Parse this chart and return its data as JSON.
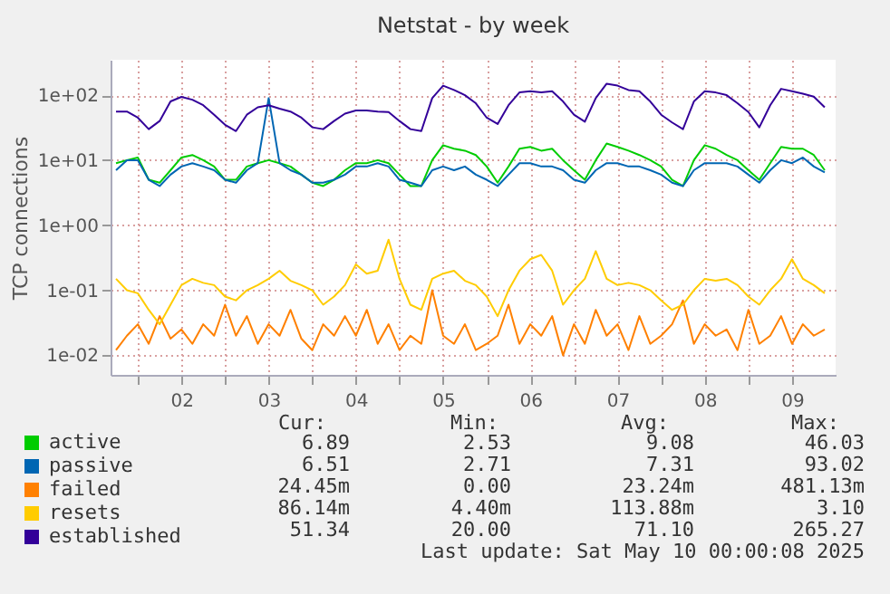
{
  "chart_data": {
    "type": "line",
    "title": "Netstat - by week",
    "ylabel": "TCP connections",
    "log": true,
    "grid": true,
    "legend": "bottom",
    "x": [
      "2025-05-01T18:00",
      "2025-05-01T21:00",
      "2025-05-02T00:00",
      "2025-05-02T03:00",
      "2025-05-02T06:00",
      "2025-05-02T09:00",
      "2025-05-02T12:00",
      "2025-05-02T15:00",
      "2025-05-02T18:00",
      "2025-05-02T21:00",
      "2025-05-03T00:00",
      "2025-05-03T03:00",
      "2025-05-03T06:00",
      "2025-05-03T09:00",
      "2025-05-03T12:00",
      "2025-05-03T15:00",
      "2025-05-03T18:00",
      "2025-05-03T21:00",
      "2025-05-04T00:00",
      "2025-05-04T03:00",
      "2025-05-04T06:00",
      "2025-05-04T09:00",
      "2025-05-04T12:00",
      "2025-05-04T15:00",
      "2025-05-04T18:00",
      "2025-05-04T21:00",
      "2025-05-05T00:00",
      "2025-05-05T03:00",
      "2025-05-05T06:00",
      "2025-05-05T09:00",
      "2025-05-05T12:00",
      "2025-05-05T15:00",
      "2025-05-05T18:00",
      "2025-05-05T21:00",
      "2025-05-06T00:00",
      "2025-05-06T03:00",
      "2025-05-06T06:00",
      "2025-05-06T09:00",
      "2025-05-06T12:00",
      "2025-05-06T15:00",
      "2025-05-06T18:00",
      "2025-05-06T21:00",
      "2025-05-07T00:00",
      "2025-05-07T03:00",
      "2025-05-07T06:00",
      "2025-05-07T09:00",
      "2025-05-07T12:00",
      "2025-05-07T15:00",
      "2025-05-07T18:00",
      "2025-05-07T21:00",
      "2025-05-08T00:00",
      "2025-05-08T03:00",
      "2025-05-08T06:00",
      "2025-05-08T09:00",
      "2025-05-08T12:00",
      "2025-05-08T15:00",
      "2025-05-08T18:00",
      "2025-05-08T21:00",
      "2025-05-09T00:00",
      "2025-05-09T03:00",
      "2025-05-09T06:00",
      "2025-05-09T09:00",
      "2025-05-09T12:00",
      "2025-05-09T15:00",
      "2025-05-09T18:00",
      "2025-05-09T21:00"
    ],
    "series": [
      {
        "name": "active",
        "color": "#00cc00",
        "values": [
          9,
          10,
          11,
          5,
          4.5,
          7,
          11,
          12,
          10,
          8,
          5,
          5,
          8,
          9,
          10,
          9,
          8,
          6,
          4.5,
          4,
          5,
          7,
          9,
          9,
          10,
          9,
          6,
          4,
          4,
          10,
          17,
          15,
          14,
          12,
          8,
          4.5,
          8,
          15,
          16,
          14,
          15,
          10,
          7,
          5,
          10,
          18,
          16,
          14,
          12,
          10,
          8,
          5,
          4,
          10,
          17,
          15,
          12,
          10,
          7,
          5,
          9,
          16,
          15,
          15,
          12,
          7
        ]
      },
      {
        "name": "passive",
        "color": "#0066b3",
        "values": [
          7,
          10,
          10,
          5,
          4,
          6,
          8,
          9,
          8,
          7,
          5,
          4.5,
          7,
          9,
          90,
          9,
          7,
          6,
          4.5,
          4.5,
          5,
          6,
          8,
          8,
          9,
          8,
          5,
          4.5,
          4,
          7,
          8,
          7,
          8,
          6,
          5,
          4,
          6,
          9,
          9,
          8,
          8,
          7,
          5,
          4.5,
          7,
          9,
          9,
          8,
          8,
          7,
          6,
          4.5,
          4,
          7,
          9,
          9,
          9,
          8,
          6,
          4.5,
          7,
          10,
          9,
          11,
          8,
          6.5
        ]
      },
      {
        "name": "failed",
        "color": "#ff8000",
        "values": [
          0.012,
          0.02,
          0.03,
          0.015,
          0.04,
          0.018,
          0.025,
          0.015,
          0.03,
          0.02,
          0.06,
          0.02,
          0.04,
          0.015,
          0.03,
          0.02,
          0.05,
          0.018,
          0.012,
          0.03,
          0.02,
          0.04,
          0.02,
          0.05,
          0.015,
          0.03,
          0.012,
          0.02,
          0.015,
          0.1,
          0.02,
          0.015,
          0.03,
          0.012,
          0.015,
          0.02,
          0.06,
          0.015,
          0.03,
          0.02,
          0.04,
          0.01,
          0.03,
          0.015,
          0.05,
          0.02,
          0.03,
          0.012,
          0.04,
          0.015,
          0.02,
          0.03,
          0.07,
          0.015,
          0.03,
          0.02,
          0.025,
          0.012,
          0.05,
          0.015,
          0.02,
          0.04,
          0.015,
          0.03,
          0.02,
          0.025
        ]
      },
      {
        "name": "resets",
        "color": "#ffcc00",
        "values": [
          0.15,
          0.1,
          0.09,
          0.05,
          0.03,
          0.06,
          0.12,
          0.15,
          0.13,
          0.12,
          0.08,
          0.07,
          0.1,
          0.12,
          0.15,
          0.2,
          0.14,
          0.12,
          0.1,
          0.06,
          0.08,
          0.12,
          0.25,
          0.18,
          0.2,
          0.6,
          0.15,
          0.06,
          0.05,
          0.15,
          0.18,
          0.2,
          0.14,
          0.12,
          0.08,
          0.04,
          0.1,
          0.2,
          0.3,
          0.35,
          0.2,
          0.06,
          0.1,
          0.15,
          0.4,
          0.15,
          0.12,
          0.13,
          0.12,
          0.1,
          0.07,
          0.05,
          0.06,
          0.1,
          0.15,
          0.14,
          0.15,
          0.12,
          0.08,
          0.06,
          0.1,
          0.15,
          0.3,
          0.15,
          0.12,
          0.09
        ]
      },
      {
        "name": "established",
        "color": "#330099",
        "values": [
          56,
          56,
          45,
          30,
          40,
          80,
          94,
          85,
          70,
          50,
          35,
          28,
          50,
          65,
          70,
          62,
          56,
          45,
          32,
          30,
          40,
          52,
          58,
          58,
          56,
          55,
          40,
          30,
          28,
          90,
          140,
          120,
          100,
          75,
          45,
          36,
          70,
          110,
          115,
          110,
          115,
          80,
          50,
          39,
          90,
          150,
          140,
          120,
          115,
          80,
          50,
          38,
          30,
          80,
          115,
          110,
          100,
          75,
          55,
          32,
          70,
          125,
          115,
          105,
          95,
          65
        ]
      }
    ],
    "xlim": [
      "2025-05-01T16:30",
      "2025-05-10T00:00"
    ],
    "xticks": [
      {
        "value": "2025-05-02T00:00",
        "label": null
      },
      {
        "value": "2025-05-02T12:00",
        "label": "02"
      },
      {
        "value": "2025-05-03T00:00",
        "label": null
      },
      {
        "value": "2025-05-03T12:00",
        "label": "03"
      },
      {
        "value": "2025-05-04T00:00",
        "label": null
      },
      {
        "value": "2025-05-04T12:00",
        "label": "04"
      },
      {
        "value": "2025-05-05T00:00",
        "label": null
      },
      {
        "value": "2025-05-05T12:00",
        "label": "05"
      },
      {
        "value": "2025-05-06T00:00",
        "label": null
      },
      {
        "value": "2025-05-06T12:00",
        "label": "06"
      },
      {
        "value": "2025-05-07T00:00",
        "label": null
      },
      {
        "value": "2025-05-07T12:00",
        "label": "07"
      },
      {
        "value": "2025-05-08T00:00",
        "label": null
      },
      {
        "value": "2025-05-08T12:00",
        "label": "08"
      },
      {
        "value": "2025-05-09T00:00",
        "label": null
      },
      {
        "value": "2025-05-09T12:00",
        "label": "09"
      }
    ],
    "ylim": [
      0.005,
      350
    ],
    "yticks": [
      {
        "value": 0.01,
        "label": "1e-02"
      },
      {
        "value": 0.1,
        "label": "1e-01"
      },
      {
        "value": 1,
        "label": "1e+00"
      },
      {
        "value": 10,
        "label": "1e+01"
      },
      {
        "value": 100,
        "label": "1e+02"
      }
    ],
    "annotations": [
      "Cur:",
      "Min:",
      "Avg:",
      "Max:",
      "6.89",
      "2.53",
      "9.08",
      "46.03",
      "6.51",
      "2.71",
      "7.31",
      "93.02",
      "24.45m",
      "0.00",
      "23.24m",
      "481.13m",
      "86.14m",
      "4.40m",
      "113.88m",
      "3.10",
      "51.34",
      "20.00",
      "71.10",
      "265.27",
      "Last update: Sat May 10 00:00:08 2025"
    ]
  }
}
